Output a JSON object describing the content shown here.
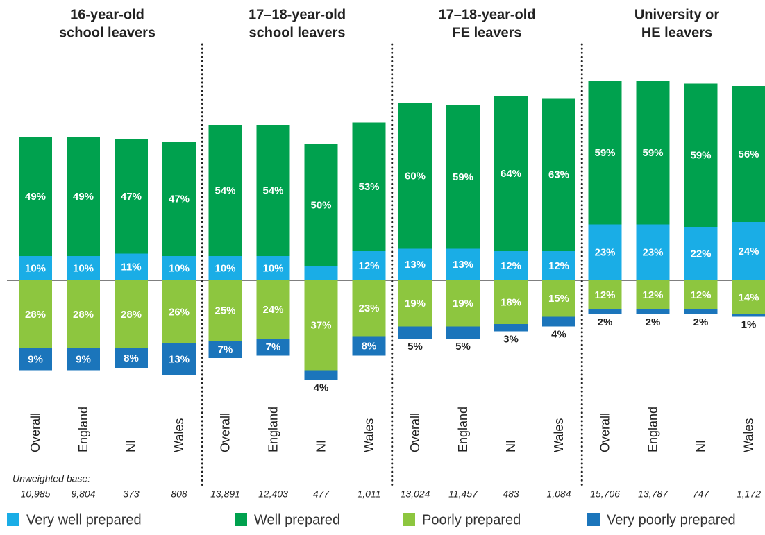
{
  "chart_data": {
    "type": "diverging-stacked-bar",
    "groups": [
      {
        "title": [
          "16-year-old",
          "school leavers"
        ]
      },
      {
        "title": [
          "17–18-year-old",
          "school leavers"
        ]
      },
      {
        "title": [
          "17–18-year-old",
          "FE leavers"
        ]
      },
      {
        "title": [
          "University or",
          "HE leavers"
        ]
      }
    ],
    "categories": [
      "Overall",
      "England",
      "NI",
      "Wales",
      "Overall",
      "England",
      "NI",
      "Wales",
      "Overall",
      "England",
      "NI",
      "Wales",
      "Overall",
      "England",
      "NI",
      "Wales"
    ],
    "base_label": "Unweighted base:",
    "bases": [
      "10,985",
      "9,804",
      "373",
      "808",
      "13,891",
      "12,403",
      "477",
      "1,011",
      "13,024",
      "11,457",
      "483",
      "1,084",
      "15,706",
      "13,787",
      "747",
      "1,172"
    ],
    "series": [
      {
        "name": "Very well prepared",
        "color": "#1aade6",
        "side": "above",
        "values": [
          10,
          10,
          11,
          10,
          10,
          10,
          6,
          12,
          13,
          13,
          12,
          12,
          23,
          23,
          22,
          24
        ],
        "value_labels": [
          "10%",
          "10%",
          "11%",
          "10%",
          "10%",
          "10%",
          "6%",
          "12%",
          "13%",
          "13%",
          "12%",
          "12%",
          "23%",
          "23%",
          "22%",
          "24%"
        ]
      },
      {
        "name": "Well prepared",
        "color": "#00a14e",
        "side": "above",
        "values": [
          49,
          49,
          47,
          47,
          54,
          54,
          50,
          53,
          60,
          59,
          64,
          63,
          59,
          59,
          59,
          56
        ],
        "value_labels": [
          "49%",
          "49%",
          "47%",
          "47%",
          "54%",
          "54%",
          "50%",
          "53%",
          "60%",
          "59%",
          "64%",
          "63%",
          "59%",
          "59%",
          "59%",
          "56%"
        ]
      },
      {
        "name": "Poorly prepared",
        "color": "#8dc63f",
        "side": "below",
        "values": [
          28,
          28,
          28,
          26,
          25,
          24,
          37,
          23,
          19,
          19,
          18,
          15,
          12,
          12,
          12,
          14
        ],
        "value_labels": [
          "28%",
          "28%",
          "28%",
          "26%",
          "25%",
          "24%",
          "37%",
          "23%",
          "19%",
          "19%",
          "18%",
          "15%",
          "12%",
          "12%",
          "12%",
          "14%"
        ]
      },
      {
        "name": "Very poorly prepared",
        "color": "#1b75bb",
        "side": "below",
        "values": [
          9,
          9,
          8,
          13,
          7,
          7,
          4,
          8,
          5,
          5,
          3,
          4,
          2,
          2,
          2,
          1
        ],
        "value_labels": [
          "9%",
          "9%",
          "8%",
          "13%",
          "7%",
          "7%",
          "4%",
          "8%",
          "5%",
          "5%",
          "3%",
          "4%",
          "2%",
          "2%",
          "2%",
          "1%"
        ]
      }
    ]
  }
}
